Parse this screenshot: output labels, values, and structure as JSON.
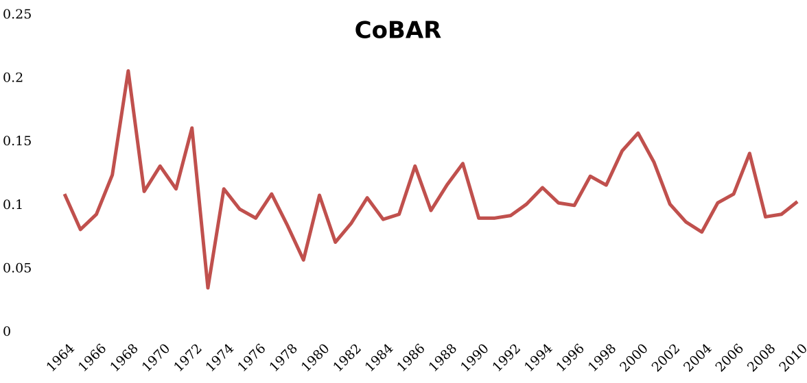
{
  "chart_data": {
    "type": "line",
    "title": "CoBAR",
    "x": [
      1964,
      1965,
      1966,
      1967,
      1968,
      1969,
      1970,
      1971,
      1972,
      1973,
      1974,
      1975,
      1976,
      1977,
      1978,
      1979,
      1980,
      1981,
      1982,
      1983,
      1984,
      1985,
      1986,
      1987,
      1988,
      1989,
      1990,
      1991,
      1992,
      1993,
      1994,
      1995,
      1996,
      1997,
      1998,
      1999,
      2000,
      2001,
      2002,
      2003,
      2004,
      2005,
      2006,
      2007,
      2008,
      2009,
      2010
    ],
    "series": [
      {
        "name": "CoBAR",
        "color": "#c0504d",
        "values": [
          0.109,
          0.081,
          0.093,
          0.124,
          0.206,
          0.111,
          0.131,
          0.113,
          0.161,
          0.035,
          0.113,
          0.097,
          0.09,
          0.109,
          0.084,
          0.057,
          0.108,
          0.071,
          0.086,
          0.106,
          0.089,
          0.093,
          0.131,
          0.096,
          0.116,
          0.133,
          0.09,
          0.09,
          0.092,
          0.101,
          0.114,
          0.102,
          0.1,
          0.123,
          0.116,
          0.143,
          0.157,
          0.134,
          0.101,
          0.087,
          0.079,
          0.102,
          0.109,
          0.141,
          0.091,
          0.093,
          0.103
        ]
      }
    ],
    "xlim": [
      1964,
      2010
    ],
    "xticks": [
      1964,
      1966,
      1968,
      1970,
      1972,
      1974,
      1976,
      1978,
      1980,
      1982,
      1984,
      1986,
      1988,
      1990,
      1992,
      1994,
      1996,
      1998,
      2000,
      2002,
      2004,
      2006,
      2008,
      2010
    ],
    "ylim": [
      0,
      0.25
    ],
    "yticks": [
      0,
      0.05,
      0.1,
      0.15,
      0.2,
      0.25
    ],
    "grid": false
  }
}
